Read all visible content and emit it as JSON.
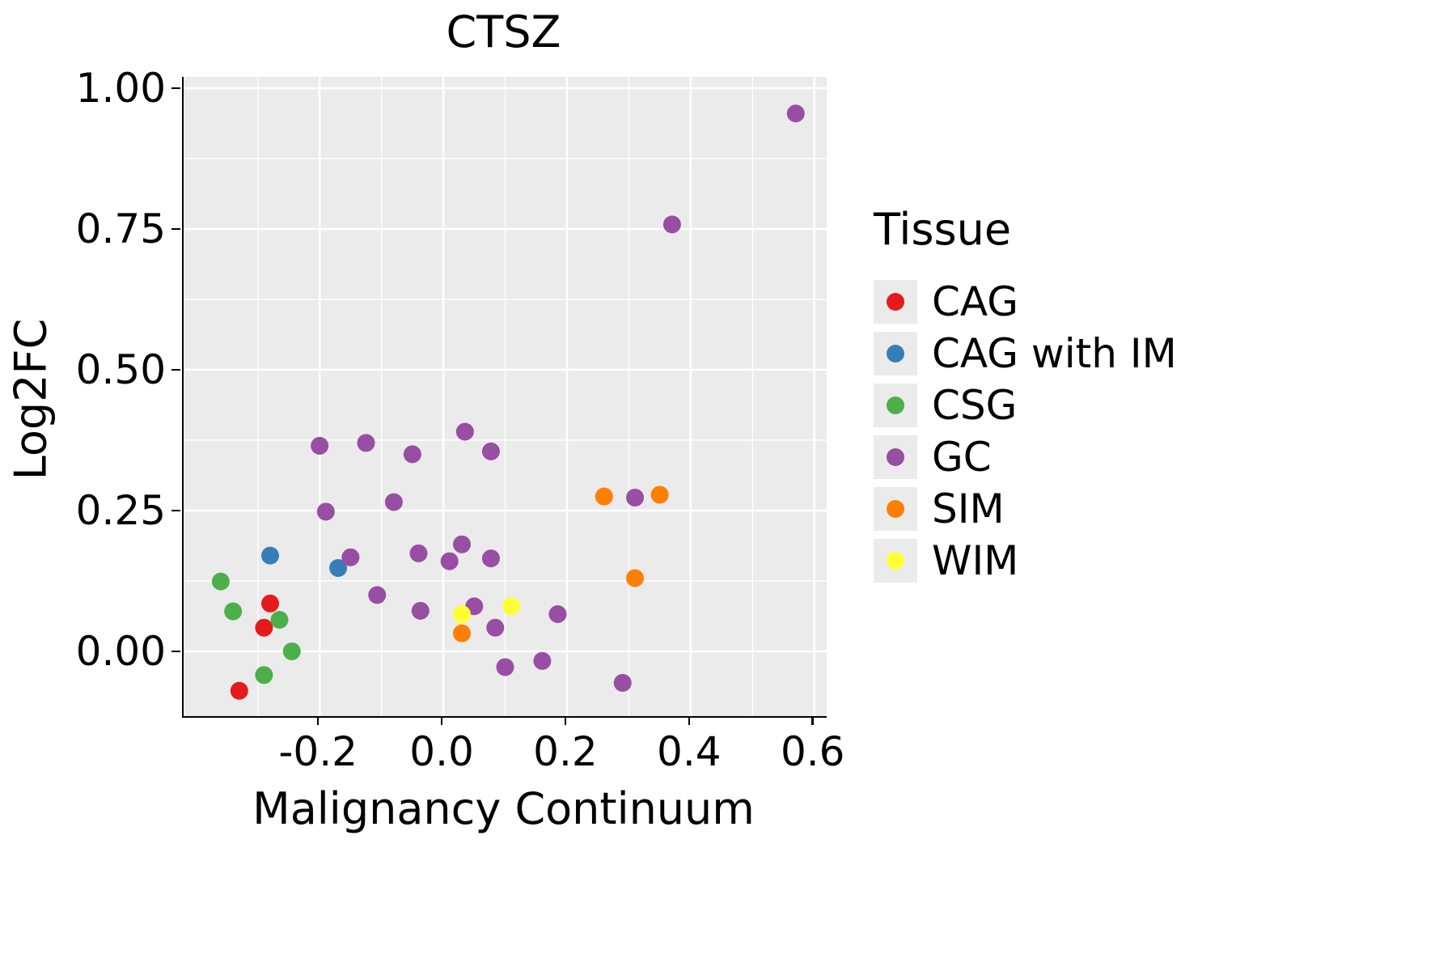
{
  "legend": {
    "title": "Tissue"
  },
  "chart_data": {
    "type": "scatter",
    "title": "CTSZ",
    "xlabel": "Malignancy Continuum",
    "ylabel": "Log2FC",
    "xlim": [
      -0.42,
      0.62
    ],
    "ylim": [
      -0.115,
      1.02
    ],
    "grid": true,
    "panel_bg": "#EBEBEB",
    "grid_color": "#FFFFFF",
    "legend_position": "right",
    "x_ticks": {
      "values": [
        -0.2,
        0.0,
        0.2,
        0.4,
        0.6
      ],
      "labels": [
        "-0.2",
        "0.0",
        "0.2",
        "0.4",
        "0.6"
      ]
    },
    "y_ticks": {
      "values": [
        0.0,
        0.25,
        0.5,
        0.75,
        1.0
      ],
      "labels": [
        "0.00",
        "0.25",
        "0.50",
        "0.75",
        "1.00"
      ]
    },
    "x_minor": [
      -0.3,
      -0.1,
      0.1,
      0.3,
      0.5
    ],
    "y_minor": [
      0.125,
      0.375,
      0.625,
      0.875
    ],
    "point_radius": 11,
    "series": [
      {
        "name": "CAG",
        "color": "#E41A1C",
        "points": [
          [
            -0.28,
            0.085
          ],
          [
            -0.29,
            0.042
          ],
          [
            -0.33,
            -0.07
          ]
        ]
      },
      {
        "name": "CAG with IM",
        "color": "#377EB8",
        "points": [
          [
            -0.28,
            0.17
          ],
          [
            -0.17,
            0.148
          ]
        ]
      },
      {
        "name": "CSG",
        "color": "#4DAF4A",
        "points": [
          [
            -0.36,
            0.124
          ],
          [
            -0.34,
            0.071
          ],
          [
            -0.265,
            0.056
          ],
          [
            -0.245,
            0.0
          ],
          [
            -0.29,
            -0.042
          ]
        ]
      },
      {
        "name": "GC",
        "color": "#984EA3",
        "points": [
          [
            0.57,
            0.955
          ],
          [
            0.37,
            0.758
          ],
          [
            0.035,
            0.39
          ],
          [
            -0.2,
            0.365
          ],
          [
            -0.125,
            0.37
          ],
          [
            -0.05,
            0.35
          ],
          [
            0.077,
            0.355
          ],
          [
            -0.19,
            0.248
          ],
          [
            -0.08,
            0.265
          ],
          [
            0.31,
            0.273
          ],
          [
            0.03,
            0.19
          ],
          [
            -0.15,
            0.167
          ],
          [
            -0.04,
            0.174
          ],
          [
            0.01,
            0.16
          ],
          [
            0.077,
            0.165
          ],
          [
            -0.107,
            0.1
          ],
          [
            0.05,
            0.08
          ],
          [
            -0.037,
            0.072
          ],
          [
            0.185,
            0.066
          ],
          [
            0.084,
            0.042
          ],
          [
            0.1,
            -0.028
          ],
          [
            0.16,
            -0.017
          ],
          [
            0.29,
            -0.056
          ]
        ]
      },
      {
        "name": "SIM",
        "color": "#FF7F00",
        "points": [
          [
            0.26,
            0.275
          ],
          [
            0.35,
            0.278
          ],
          [
            0.31,
            0.13
          ],
          [
            0.03,
            0.032
          ]
        ]
      },
      {
        "name": "WIM",
        "color": "#FFFF33",
        "points": [
          [
            0.03,
            0.066
          ],
          [
            0.11,
            0.08
          ]
        ]
      }
    ]
  }
}
